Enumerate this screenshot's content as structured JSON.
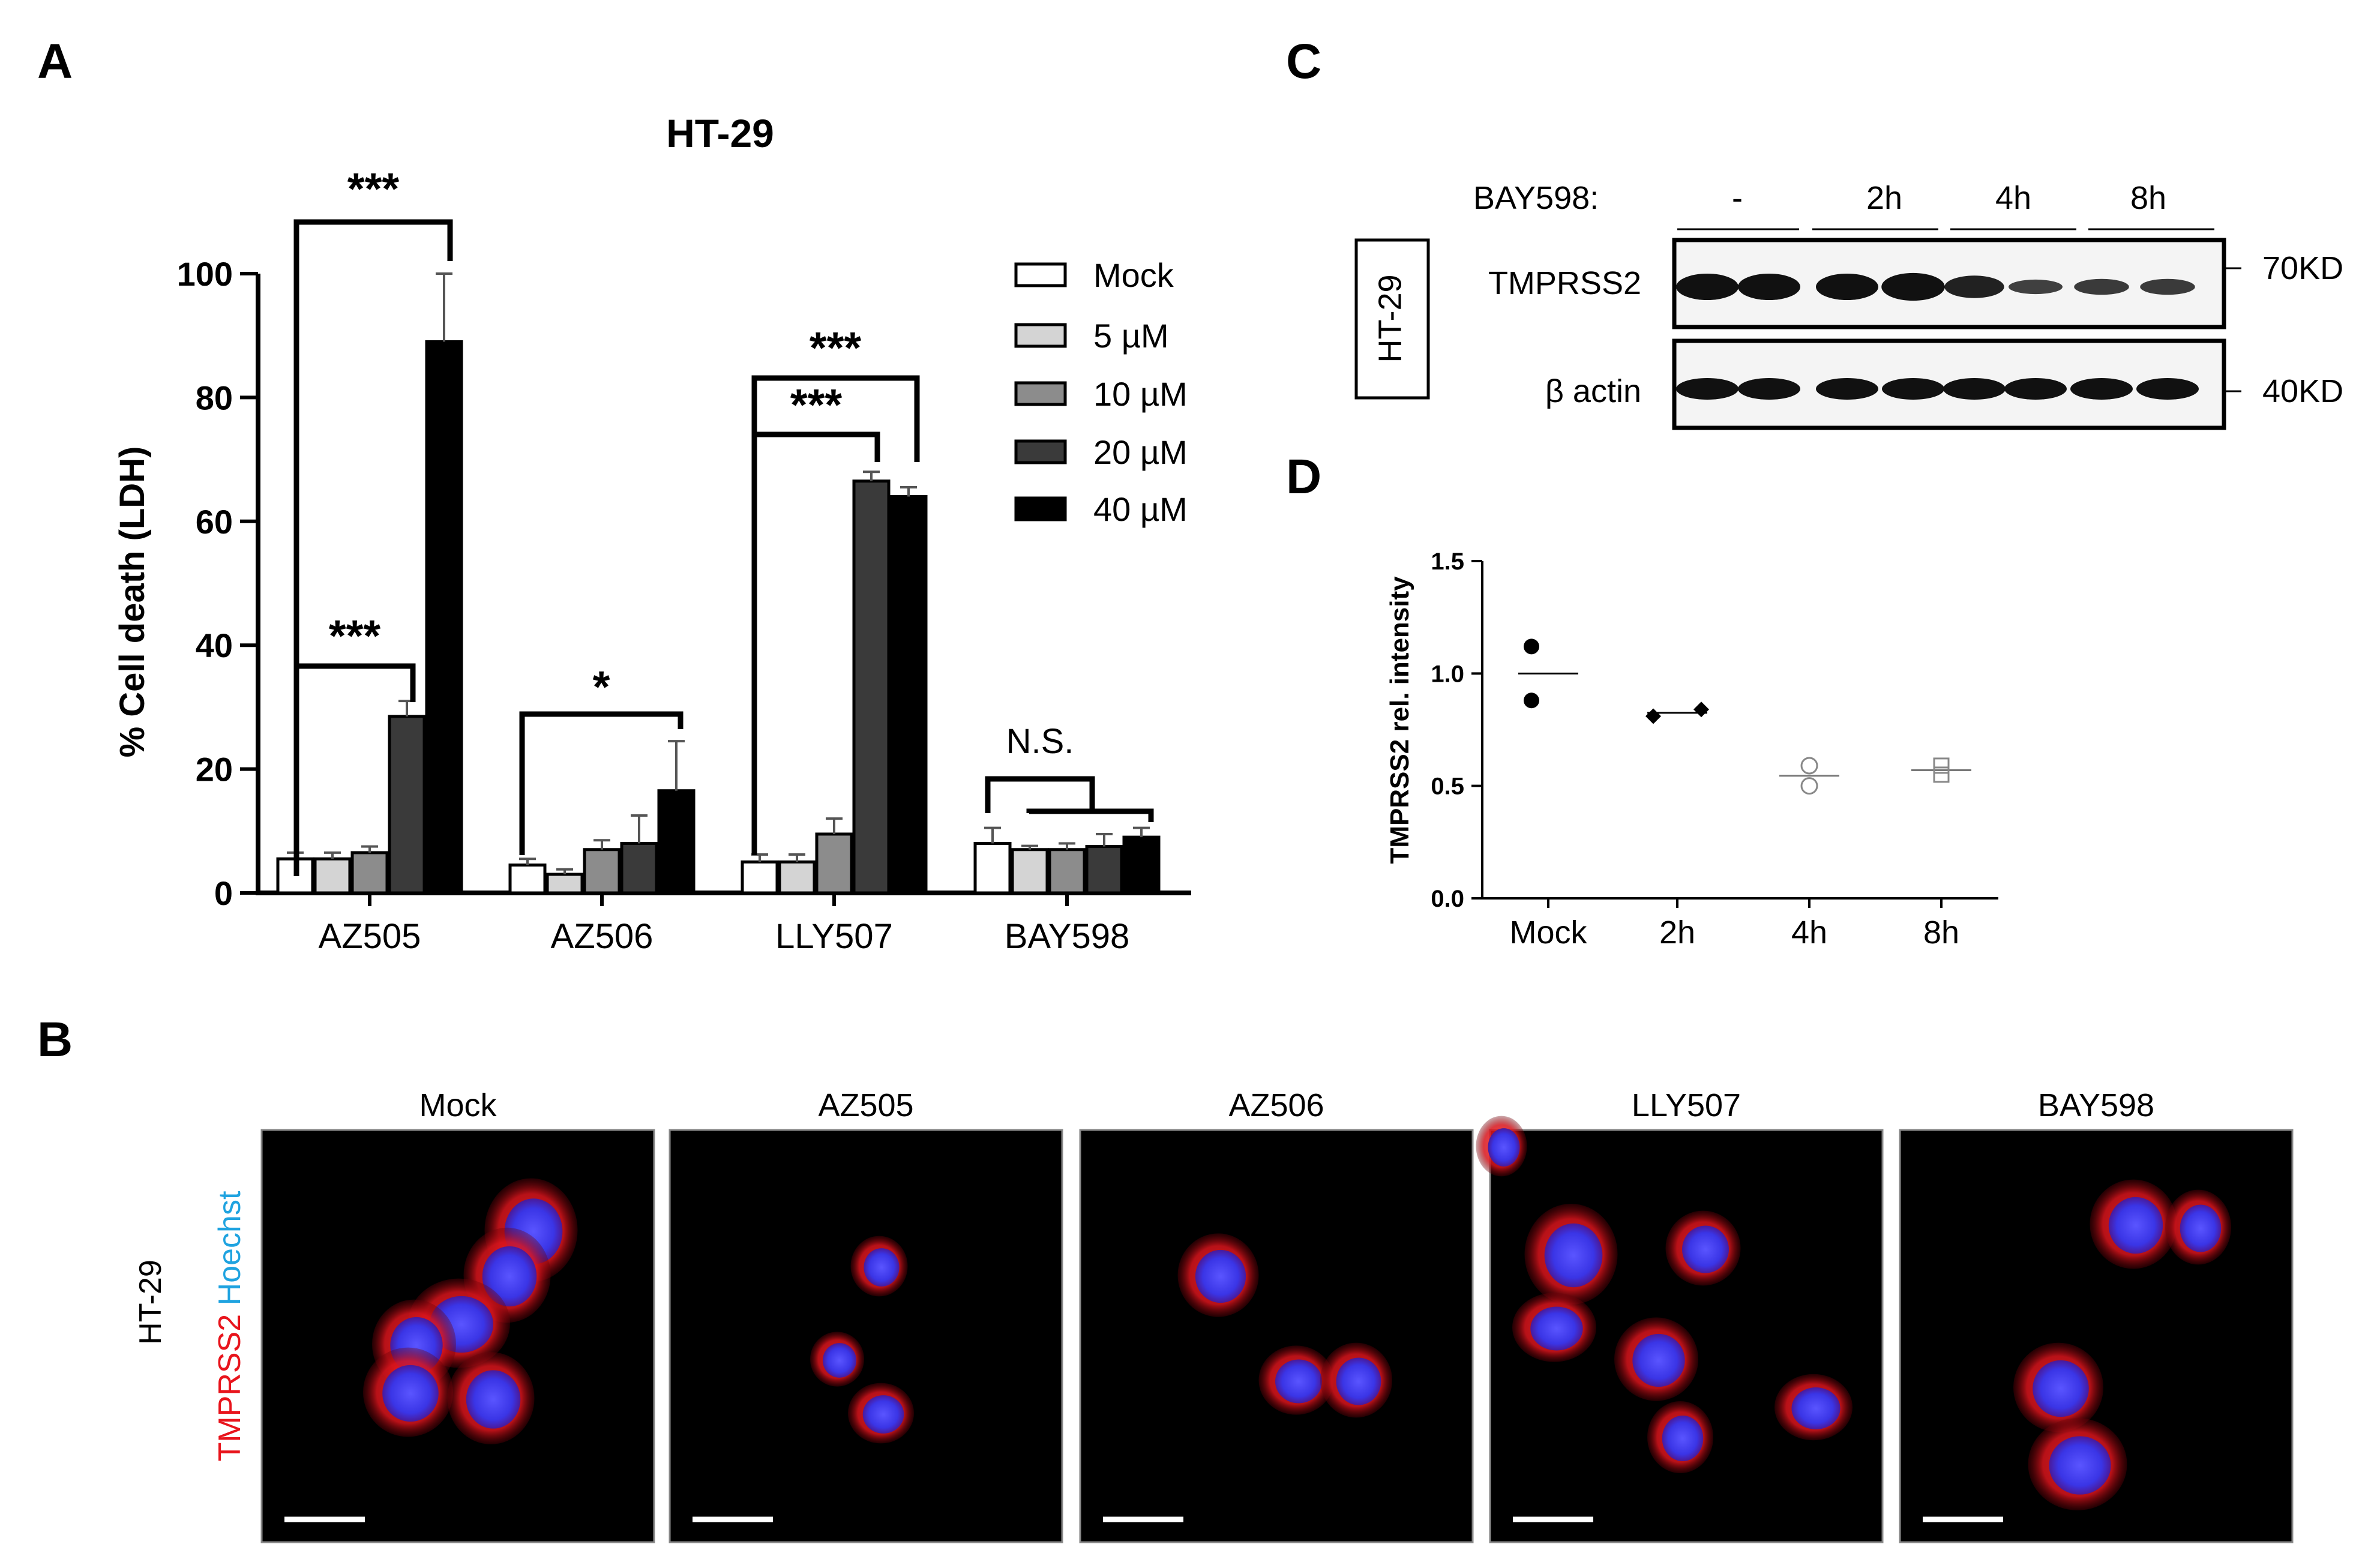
{
  "panels": {
    "a": "A",
    "b": "B",
    "c": "C",
    "d": "D"
  },
  "chart_data": [
    {
      "type": "bar",
      "title": "HT-29",
      "ylabel": "% Cell death (LDH)",
      "xlabel": "",
      "ylim": [
        0,
        100
      ],
      "yticks": [
        "0",
        "20",
        "40",
        "60",
        "80",
        "100"
      ],
      "categories": [
        "AZ505",
        "AZ506",
        "LLY507",
        "BAY598"
      ],
      "legend_position": "top-right",
      "series": [
        {
          "name": "Mock",
          "color": "#ffffff",
          "values": [
            5.5,
            4.5,
            5,
            8
          ],
          "errors": [
            1,
            1,
            1.2,
            2.5
          ]
        },
        {
          "name": "5 µM",
          "color": "#d4d4d4",
          "values": [
            5.5,
            3,
            5,
            7
          ],
          "errors": [
            1,
            0.8,
            1.2,
            0.6
          ]
        },
        {
          "name": "10 µM",
          "color": "#8c8c8c",
          "values": [
            6.5,
            7,
            9.5,
            7
          ],
          "errors": [
            1,
            1.5,
            2.5,
            1
          ]
        },
        {
          "name": "20 µM",
          "color": "#3a3a3a",
          "values": [
            28.5,
            8,
            66.5,
            7.5
          ],
          "errors": [
            2.5,
            4.5,
            1.5,
            2
          ]
        },
        {
          "name": "40 µM",
          "color": "#000000",
          "values": [
            89,
            16.5,
            64,
            9
          ],
          "errors": [
            11,
            8,
            1.5,
            1.5
          ]
        }
      ],
      "annotations": [
        "***",
        "***",
        "*",
        "***",
        "***",
        "N.S."
      ]
    },
    {
      "type": "scatter",
      "ylabel": "TMPRSS2 rel. intensity",
      "ylim": [
        0,
        1.5
      ],
      "yticks": [
        "0.0",
        "0.5",
        "1.0",
        "1.5"
      ],
      "categories": [
        "Mock",
        "2h",
        "4h",
        "8h"
      ],
      "series": [
        {
          "name": "Mock",
          "points": [
            1.12,
            0.88
          ],
          "mean": 1.0,
          "marker": "filled-circle"
        },
        {
          "name": "2h",
          "points": [
            0.81,
            0.84
          ],
          "mean": 0.825,
          "marker": "filled-diamond"
        },
        {
          "name": "4h",
          "points": [
            0.59,
            0.5
          ],
          "mean": 0.545,
          "marker": "open-circle"
        },
        {
          "name": "8h",
          "points": [
            0.59,
            0.55
          ],
          "mean": 0.57,
          "marker": "open-square"
        }
      ]
    }
  ],
  "blot": {
    "treatment_label": "BAY598:",
    "lanes": [
      "-",
      "2h",
      "4h",
      "8h"
    ],
    "cell_line": "HT-29",
    "bands": [
      {
        "label": "TMPRSS2",
        "marker": "70KD"
      },
      {
        "label": "β actin",
        "marker": "40KD"
      }
    ]
  },
  "microscopy": {
    "cell_line": "HT-29",
    "stain_red": "TMPRSS2",
    "stain_blue": "Hoechst",
    "panels": [
      "Mock",
      "AZ505",
      "AZ506",
      "LLY507",
      "BAY598"
    ],
    "colors": {
      "red": "#e8141c",
      "blue": "#1fa3e0"
    }
  }
}
